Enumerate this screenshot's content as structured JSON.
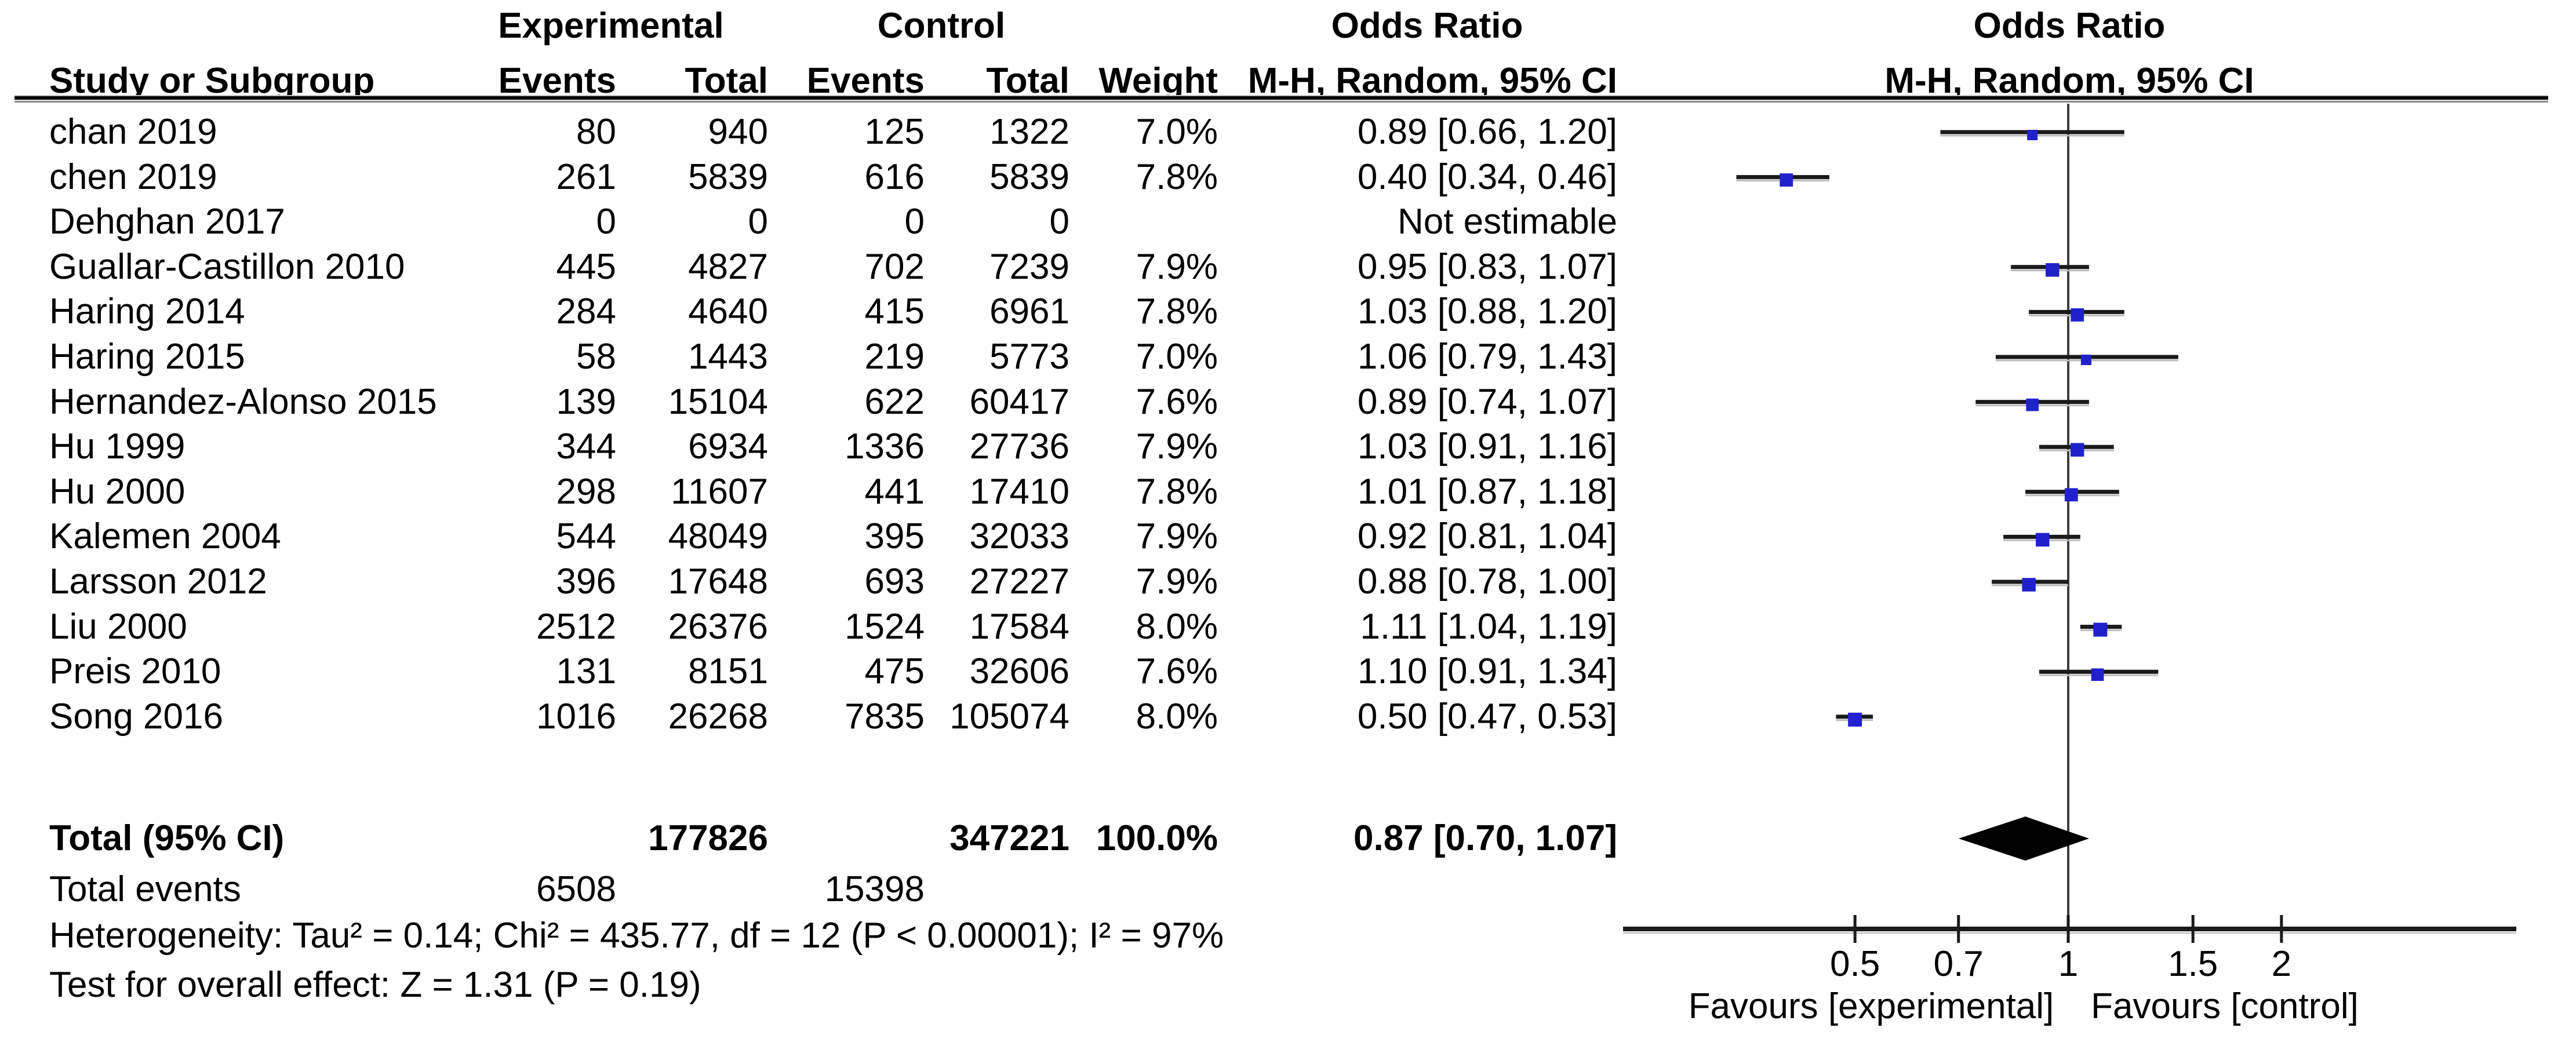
{
  "header": {
    "group_experimental": "Experimental",
    "group_control": "Control",
    "odds_ratio_left": "Odds Ratio",
    "odds_ratio_right": "Odds Ratio",
    "study_col": "Study or Subgroup",
    "events_col": "Events",
    "total_col": "Total",
    "weight_col": "Weight",
    "method_left": "M-H, Random, 95% CI",
    "method_right": "M-H, Random, 95% CI"
  },
  "chart_data": {
    "type": "forest",
    "x_scale": "log",
    "null_line": 1,
    "axis_ticks": [
      {
        "v": 0.5,
        "label": "0.5"
      },
      {
        "v": 0.7,
        "label": "0.7"
      },
      {
        "v": 1,
        "label": "1"
      },
      {
        "v": 1.5,
        "label": "1.5"
      },
      {
        "v": 2,
        "label": "2"
      }
    ],
    "favours_left": "Favours [experimental]",
    "favours_right": "Favours [control]",
    "marker_color": "#2121cc",
    "studies": [
      {
        "name": "chan 2019",
        "exp_events": "80",
        "exp_total": "940",
        "ctrl_events": "125",
        "ctrl_total": "1322",
        "weight": "7.0%",
        "or_text": "0.89 [0.66, 1.20]",
        "or": 0.89,
        "low": 0.66,
        "high": 1.2
      },
      {
        "name": "chen 2019",
        "exp_events": "261",
        "exp_total": "5839",
        "ctrl_events": "616",
        "ctrl_total": "5839",
        "weight": "7.8%",
        "or_text": "0.40 [0.34, 0.46]",
        "or": 0.4,
        "low": 0.34,
        "high": 0.46
      },
      {
        "name": "Dehghan 2017",
        "exp_events": "0",
        "exp_total": "0",
        "ctrl_events": "0",
        "ctrl_total": "0",
        "weight": "",
        "or_text": "Not estimable",
        "or": null,
        "low": null,
        "high": null
      },
      {
        "name": "Guallar-Castillon 2010",
        "exp_events": "445",
        "exp_total": "4827",
        "ctrl_events": "702",
        "ctrl_total": "7239",
        "weight": "7.9%",
        "or_text": "0.95 [0.83, 1.07]",
        "or": 0.95,
        "low": 0.83,
        "high": 1.07
      },
      {
        "name": "Haring 2014",
        "exp_events": "284",
        "exp_total": "4640",
        "ctrl_events": "415",
        "ctrl_total": "6961",
        "weight": "7.8%",
        "or_text": "1.03 [0.88, 1.20]",
        "or": 1.03,
        "low": 0.88,
        "high": 1.2
      },
      {
        "name": "Haring 2015",
        "exp_events": "58",
        "exp_total": "1443",
        "ctrl_events": "219",
        "ctrl_total": "5773",
        "weight": "7.0%",
        "or_text": "1.06 [0.79, 1.43]",
        "or": 1.06,
        "low": 0.79,
        "high": 1.43
      },
      {
        "name": "Hernandez-Alonso 2015",
        "exp_events": "139",
        "exp_total": "15104",
        "ctrl_events": "622",
        "ctrl_total": "60417",
        "weight": "7.6%",
        "or_text": "0.89 [0.74, 1.07]",
        "or": 0.89,
        "low": 0.74,
        "high": 1.07
      },
      {
        "name": "Hu 1999",
        "exp_events": "344",
        "exp_total": "6934",
        "ctrl_events": "1336",
        "ctrl_total": "27736",
        "weight": "7.9%",
        "or_text": "1.03 [0.91, 1.16]",
        "or": 1.03,
        "low": 0.91,
        "high": 1.16
      },
      {
        "name": "Hu 2000",
        "exp_events": "298",
        "exp_total": "11607",
        "ctrl_events": "441",
        "ctrl_total": "17410",
        "weight": "7.8%",
        "or_text": "1.01 [0.87, 1.18]",
        "or": 1.01,
        "low": 0.87,
        "high": 1.18
      },
      {
        "name": "Kalemen 2004",
        "exp_events": "544",
        "exp_total": "48049",
        "ctrl_events": "395",
        "ctrl_total": "32033",
        "weight": "7.9%",
        "or_text": "0.92 [0.81, 1.04]",
        "or": 0.92,
        "low": 0.81,
        "high": 1.04
      },
      {
        "name": "Larsson 2012",
        "exp_events": "396",
        "exp_total": "17648",
        "ctrl_events": "693",
        "ctrl_total": "27227",
        "weight": "7.9%",
        "or_text": "0.88 [0.78, 1.00]",
        "or": 0.88,
        "low": 0.78,
        "high": 1.0
      },
      {
        "name": "Liu 2000",
        "exp_events": "2512",
        "exp_total": "26376",
        "ctrl_events": "1524",
        "ctrl_total": "17584",
        "weight": "8.0%",
        "or_text": "1.11 [1.04, 1.19]",
        "or": 1.11,
        "low": 1.04,
        "high": 1.19
      },
      {
        "name": "Preis 2010",
        "exp_events": "131",
        "exp_total": "8151",
        "ctrl_events": "475",
        "ctrl_total": "32606",
        "weight": "7.6%",
        "or_text": "1.10 [0.91, 1.34]",
        "or": 1.1,
        "low": 0.91,
        "high": 1.34
      },
      {
        "name": "Song 2016",
        "exp_events": "1016",
        "exp_total": "26268",
        "ctrl_events": "7835",
        "ctrl_total": "105074",
        "weight": "8.0%",
        "or_text": "0.50 [0.47, 0.53]",
        "or": 0.5,
        "low": 0.47,
        "high": 0.53
      }
    ],
    "total": {
      "label": "Total (95% CI)",
      "exp_total": "177826",
      "ctrl_total": "347221",
      "weight": "100.0%",
      "or_text": "0.87 [0.70, 1.07]",
      "or": 0.87,
      "low": 0.7,
      "high": 1.07
    }
  },
  "footer": {
    "total_events_label": "Total events",
    "total_exp_events": "6508",
    "total_ctrl_events": "15398",
    "heterogeneity": "Heterogeneity: Tau² = 0.14; Chi² = 435.77, df = 12 (P < 0.00001); I² = 97%",
    "overall_effect": "Test for overall effect: Z = 1.31 (P = 0.19)"
  }
}
